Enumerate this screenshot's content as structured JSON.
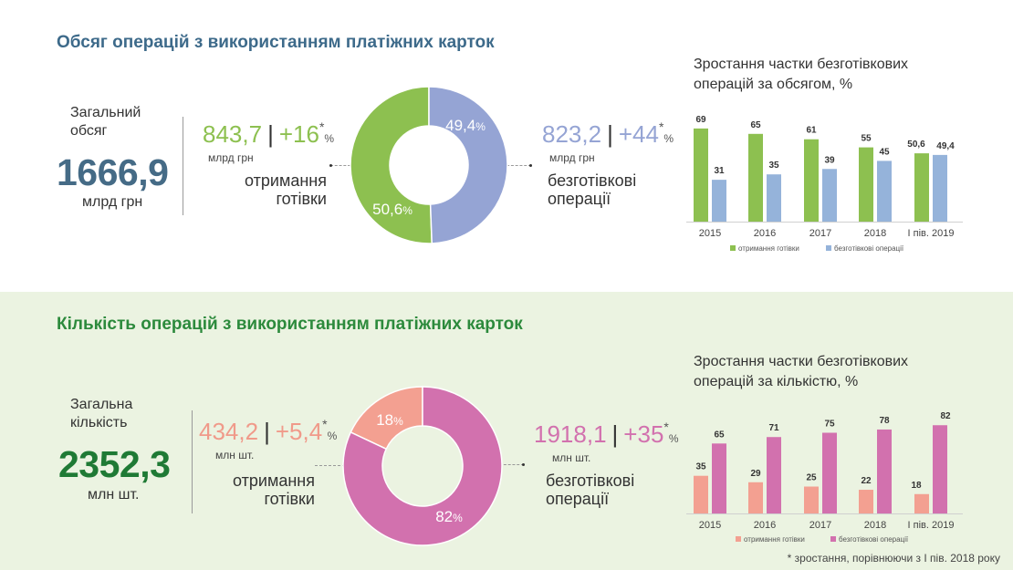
{
  "volume": {
    "title": "Обсяг операцій з використанням платіжних карток",
    "total_label_1": "Загальний",
    "total_label_2": "обсяг",
    "total_value": "1666,9",
    "total_unit": "млрд грн",
    "cash": {
      "value": "843,7",
      "growth": "+16",
      "asterisk": "*",
      "pct": "%",
      "unit": "млрд грн",
      "label_1": "отримання",
      "label_2": "готівки",
      "share": "50,6",
      "share_pct": "%"
    },
    "cashless": {
      "value": "823,2",
      "growth": "+44",
      "asterisk": "*",
      "pct": "%",
      "unit": "млрд грн",
      "label_1": "безготівкові",
      "label_2": "операції",
      "share": "49,4",
      "share_pct": "%"
    },
    "separator": "|",
    "colors": {
      "title": "#3d6a8a",
      "total": "#456b86",
      "cash": "#8dc050",
      "cashless": "#95a4d4",
      "cash_bar": "#8dc050",
      "cashless_bar": "#95b3da"
    }
  },
  "count": {
    "title": "Кількість операцій з використанням платіжних карток",
    "total_label_1": "Загальна",
    "total_label_2": "кількість",
    "total_value": "2352,3",
    "total_unit": "млн шт.",
    "cash": {
      "value": "434,2",
      "growth": "+5,4",
      "asterisk": "*",
      "pct": "%",
      "unit": "млн шт.",
      "label_1": "отримання",
      "label_2": "готівки",
      "share": "18",
      "share_pct": "%"
    },
    "cashless": {
      "value": "1918,1",
      "growth": "+35",
      "asterisk": "*",
      "pct": "%",
      "unit": "млн шт.",
      "label_1": "безготівкові",
      "label_2": "операції",
      "share": "82",
      "share_pct": "%"
    },
    "separator": "|",
    "colors": {
      "title": "#2c8a3c",
      "total": "#1f7a35",
      "cash": "#f3a091",
      "cashless": "#d271ae"
    }
  },
  "footnote": "* зростання, порівнюючи з І пів. 2018 року",
  "chart_data": [
    {
      "type": "pie",
      "variant": "donut",
      "values": [
        50.6,
        49.4
      ],
      "labels": [
        "50,6%",
        "49,4%"
      ],
      "colors": [
        "#8dc050",
        "#95a4d4"
      ]
    },
    {
      "type": "bar",
      "title": "Зростання частки безготівкових операцій за обсягом, %",
      "categories": [
        "2015",
        "2016",
        "2017",
        "2018",
        "І пів. 2019"
      ],
      "series": [
        {
          "name": "отримання готівки",
          "values": [
            69,
            65,
            61,
            55,
            50.6
          ],
          "labels": [
            "69",
            "65",
            "61",
            "55",
            "50,6"
          ],
          "color": "#8dc050"
        },
        {
          "name": "безготівкові операції",
          "values": [
            31,
            35,
            39,
            45,
            49.4
          ],
          "labels": [
            "31",
            "35",
            "39",
            "45",
            "49,4"
          ],
          "color": "#95b3da"
        }
      ],
      "ylim": [
        0,
        100
      ],
      "grid": false,
      "legend": "bottom"
    },
    {
      "type": "pie",
      "variant": "donut",
      "values": [
        18,
        82
      ],
      "labels": [
        "18%",
        "82%"
      ],
      "colors": [
        "#f3a091",
        "#d271ae"
      ]
    },
    {
      "type": "bar",
      "title": "Зростання частки безготівкових операцій за кількістю, %",
      "categories": [
        "2015",
        "2016",
        "2017",
        "2018",
        "І пів. 2019"
      ],
      "series": [
        {
          "name": "отримання готівки",
          "values": [
            35,
            29,
            25,
            22,
            18
          ],
          "labels": [
            "35",
            "29",
            "25",
            "22",
            "18"
          ],
          "color": "#f3a091"
        },
        {
          "name": "безготівкові операції",
          "values": [
            65,
            71,
            75,
            78,
            82
          ],
          "labels": [
            "65",
            "71",
            "75",
            "78",
            "82"
          ],
          "color": "#d271ae"
        }
      ],
      "ylim": [
        0,
        100
      ],
      "grid": false,
      "legend": "bottom"
    }
  ]
}
